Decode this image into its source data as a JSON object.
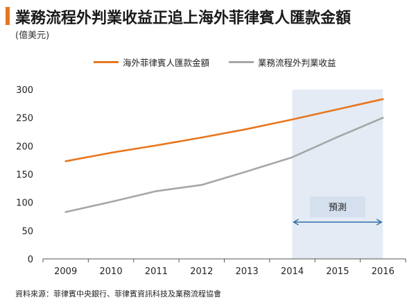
{
  "header": {
    "title": "業務流程外判業收益正追上海外菲律賓人匯款金額",
    "subtitle": "(億美元)"
  },
  "colors": {
    "accent": "#e8761e",
    "series_orange": "#e8761e",
    "series_gray": "#a6a6a6",
    "forecast_shade": "#e4ebf4",
    "forecast_box": "#d4e0ee",
    "forecast_arrow": "#2f6da8"
  },
  "legend": {
    "items": [
      {
        "label": "海外菲律賓人匯款金額",
        "color": "#e8761e"
      },
      {
        "label": "業務流程外判業收益",
        "color": "#a6a6a6"
      }
    ]
  },
  "source": "資料來源：菲律賓中央銀行、菲律賓資訊科技及業務流程協會",
  "chart_data": {
    "type": "line",
    "x": [
      "2009",
      "2010",
      "2011",
      "2012",
      "2013",
      "2014",
      "2015",
      "2016"
    ],
    "series": [
      {
        "name": "海外菲律賓人匯款金額",
        "color": "#e8761e",
        "values": [
          173,
          188,
          201,
          215,
          230,
          247,
          265,
          283
        ]
      },
      {
        "name": "業務流程外判業收益",
        "color": "#a6a6a6",
        "values": [
          83,
          101,
          120,
          131,
          155,
          180,
          216,
          250
        ]
      }
    ],
    "yticks": [
      "0",
      "50",
      "100",
      "150",
      "200",
      "250",
      "300"
    ],
    "ylim": [
      0,
      300
    ],
    "grid": false,
    "legend_position": "top",
    "forecast": {
      "label": "預測",
      "from": "2014",
      "to": "2016"
    }
  }
}
